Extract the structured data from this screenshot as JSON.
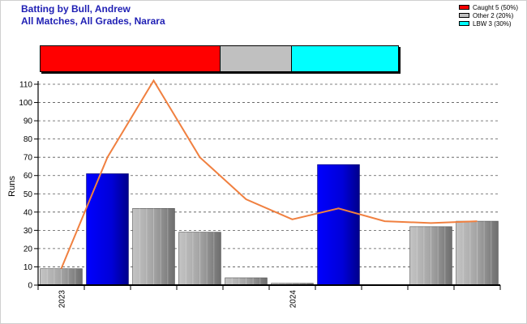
{
  "header": {
    "title_line1": "Batting by Bull, Andrew",
    "title_line2": "All Matches, All Grades, Narara"
  },
  "legend": [
    {
      "label": "Caught 5 (50%)",
      "color": "#ff0000"
    },
    {
      "label": "Other 2 (20%)",
      "color": "#c0c0c0"
    },
    {
      "label": "LBW 3 (30%)",
      "color": "#00ffff"
    }
  ],
  "chart_data": [
    {
      "type": "stacked-bar",
      "name": "dismissal-distribution",
      "segments": [
        {
          "label": "Caught",
          "count": 5,
          "percent": 50,
          "color": "#ff0000"
        },
        {
          "label": "Other",
          "count": 2,
          "percent": 20,
          "color": "#c0c0c0"
        },
        {
          "label": "LBW",
          "count": 3,
          "percent": 30,
          "color": "#00ffff"
        }
      ]
    },
    {
      "type": "bar",
      "ylabel": "Runs",
      "ylim": [
        0,
        110
      ],
      "yticks": [
        0,
        10,
        20,
        30,
        40,
        50,
        60,
        70,
        80,
        90,
        100,
        110
      ],
      "grid": true,
      "x_labels": [
        {
          "index": 0,
          "label": "2023"
        },
        {
          "index": 5,
          "label": "2024"
        }
      ],
      "innings": [
        {
          "runs": 9,
          "dismissal": "Other"
        },
        {
          "runs": 61,
          "dismissal": "Not Out"
        },
        {
          "runs": 42,
          "dismissal": "Other"
        },
        {
          "runs": 29,
          "dismissal": "Other"
        },
        {
          "runs": 4,
          "dismissal": "Other"
        },
        {
          "runs": 1,
          "dismissal": "Other"
        },
        {
          "runs": 66,
          "dismissal": "Not Out"
        },
        {
          "runs": 0,
          "dismissal": "Other"
        },
        {
          "runs": 32,
          "dismissal": "Other"
        },
        {
          "runs": 35,
          "dismissal": "Other"
        }
      ],
      "average_line": [
        9,
        70,
        112,
        70,
        47,
        36,
        42,
        35,
        34,
        35
      ],
      "colors": {
        "out": "#a8a8a8",
        "not_out": "#0000e0",
        "average_line": "#f08040"
      }
    }
  ]
}
